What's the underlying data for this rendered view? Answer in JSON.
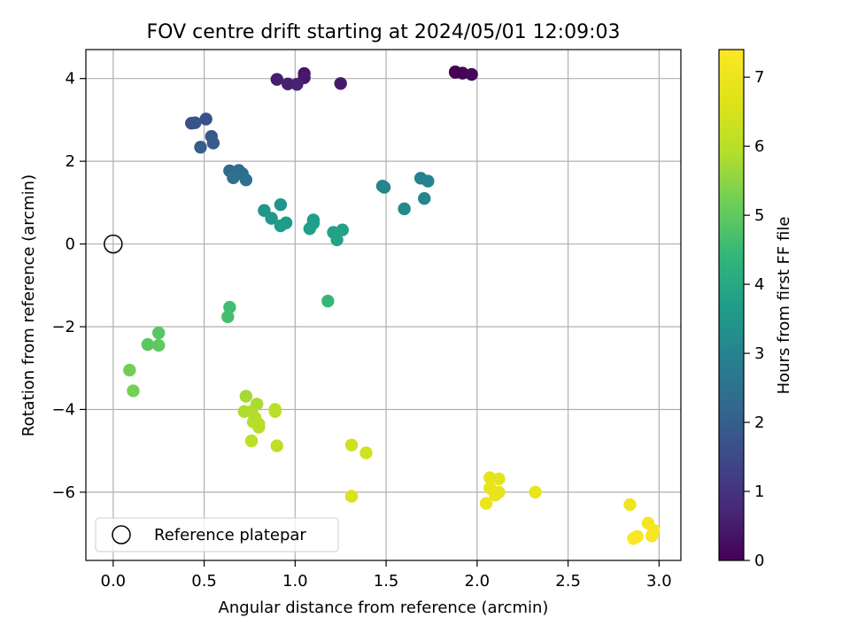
{
  "chart_data": {
    "type": "scatter",
    "title": "FOV centre drift starting at 2024/05/01 12:09:03",
    "xlabel": "Angular distance from reference (arcmin)",
    "ylabel": "Rotation from reference (arcmin)",
    "xlim": [
      -0.15,
      3.12
    ],
    "ylim": [
      -7.65,
      4.7
    ],
    "x_ticks": [
      0.0,
      0.5,
      1.0,
      1.5,
      2.0,
      2.5,
      3.0
    ],
    "x_tick_labels": [
      "0.0",
      "0.5",
      "1.0",
      "1.5",
      "2.0",
      "2.5",
      "3.0"
    ],
    "y_ticks": [
      4,
      2,
      0,
      -2,
      -4,
      -6
    ],
    "y_tick_labels": [
      "4",
      "2",
      "0",
      "−2",
      "−4",
      "−6"
    ],
    "grid": true,
    "legend": {
      "position": "lower-left",
      "entries": [
        "Reference platepar"
      ]
    },
    "colorbar": {
      "label": "Hours from first FF file",
      "colormap": "viridis",
      "range": [
        0,
        7.4
      ],
      "ticks": [
        0,
        1,
        2,
        3,
        4,
        5,
        6,
        7
      ],
      "tick_labels": [
        "0",
        "1",
        "2",
        "3",
        "4",
        "5",
        "6",
        "7"
      ]
    },
    "reference_point": {
      "name": "Reference platepar",
      "x": 0.0,
      "y": 0.0
    },
    "series": [
      {
        "points": [
          {
            "x": 1.88,
            "y": 4.15,
            "c": 0.05
          },
          {
            "x": 1.92,
            "y": 4.13,
            "c": 0.1
          },
          {
            "x": 1.97,
            "y": 4.1,
            "c": 0.15
          },
          {
            "x": 1.05,
            "y": 4.12,
            "c": 0.4
          },
          {
            "x": 1.05,
            "y": 4.02,
            "c": 0.45
          },
          {
            "x": 1.25,
            "y": 3.88,
            "c": 0.5
          },
          {
            "x": 0.9,
            "y": 3.98,
            "c": 0.55
          },
          {
            "x": 0.96,
            "y": 3.87,
            "c": 0.6
          },
          {
            "x": 1.01,
            "y": 3.86,
            "c": 0.65
          },
          {
            "x": 0.51,
            "y": 3.02,
            "c": 1.65
          },
          {
            "x": 0.43,
            "y": 2.92,
            "c": 1.7
          },
          {
            "x": 0.45,
            "y": 2.93,
            "c": 1.75
          },
          {
            "x": 0.54,
            "y": 2.6,
            "c": 1.85
          },
          {
            "x": 0.55,
            "y": 2.44,
            "c": 1.9
          },
          {
            "x": 0.48,
            "y": 2.34,
            "c": 1.95
          },
          {
            "x": 0.64,
            "y": 1.77,
            "c": 2.3
          },
          {
            "x": 0.69,
            "y": 1.78,
            "c": 2.35
          },
          {
            "x": 0.71,
            "y": 1.7,
            "c": 2.4
          },
          {
            "x": 0.66,
            "y": 1.6,
            "c": 2.45
          },
          {
            "x": 0.73,
            "y": 1.55,
            "c": 2.5
          },
          {
            "x": 1.88,
            "y": 4.16,
            "c": 0.02
          },
          {
            "x": 1.48,
            "y": 1.4,
            "c": 3.0
          },
          {
            "x": 1.49,
            "y": 1.37,
            "c": 3.05
          },
          {
            "x": 1.69,
            "y": 1.59,
            "c": 2.9
          },
          {
            "x": 1.73,
            "y": 1.52,
            "c": 2.95
          },
          {
            "x": 1.71,
            "y": 1.1,
            "c": 3.1
          },
          {
            "x": 1.6,
            "y": 0.85,
            "c": 3.15
          },
          {
            "x": 0.92,
            "y": 0.95,
            "c": 3.45
          },
          {
            "x": 0.83,
            "y": 0.81,
            "c": 3.5
          },
          {
            "x": 0.87,
            "y": 0.62,
            "c": 3.55
          },
          {
            "x": 0.95,
            "y": 0.51,
            "c": 3.6
          },
          {
            "x": 0.92,
            "y": 0.44,
            "c": 3.65
          },
          {
            "x": 1.1,
            "y": 0.58,
            "c": 3.7
          },
          {
            "x": 1.1,
            "y": 0.5,
            "c": 3.72
          },
          {
            "x": 1.08,
            "y": 0.37,
            "c": 3.75
          },
          {
            "x": 1.21,
            "y": 0.28,
            "c": 3.8
          },
          {
            "x": 1.26,
            "y": 0.34,
            "c": 3.82
          },
          {
            "x": 1.23,
            "y": 0.1,
            "c": 3.85
          },
          {
            "x": 1.18,
            "y": -1.38,
            "c": 4.45
          },
          {
            "x": 0.64,
            "y": -1.53,
            "c": 4.6
          },
          {
            "x": 0.63,
            "y": -1.76,
            "c": 4.65
          },
          {
            "x": 0.25,
            "y": -2.15,
            "c": 4.9
          },
          {
            "x": 0.19,
            "y": -2.43,
            "c": 4.95
          },
          {
            "x": 0.25,
            "y": -2.45,
            "c": 5.0
          },
          {
            "x": 0.09,
            "y": -3.05,
            "c": 5.2
          },
          {
            "x": 0.11,
            "y": -3.55,
            "c": 5.25
          },
          {
            "x": 0.73,
            "y": -3.68,
            "c": 5.75
          },
          {
            "x": 0.79,
            "y": -3.87,
            "c": 5.8
          },
          {
            "x": 0.72,
            "y": -4.05,
            "c": 5.85
          },
          {
            "x": 0.76,
            "y": -4.05,
            "c": 5.88
          },
          {
            "x": 0.78,
            "y": -4.2,
            "c": 5.9
          },
          {
            "x": 0.77,
            "y": -4.3,
            "c": 5.92
          },
          {
            "x": 0.8,
            "y": -4.35,
            "c": 5.95
          },
          {
            "x": 0.8,
            "y": -4.43,
            "c": 5.97
          },
          {
            "x": 0.89,
            "y": -4.0,
            "c": 6.0
          },
          {
            "x": 0.89,
            "y": -4.05,
            "c": 6.02
          },
          {
            "x": 0.76,
            "y": -4.76,
            "c": 6.05
          },
          {
            "x": 0.9,
            "y": -4.88,
            "c": 6.1
          },
          {
            "x": 1.31,
            "y": -4.86,
            "c": 6.35
          },
          {
            "x": 1.39,
            "y": -5.05,
            "c": 6.4
          },
          {
            "x": 1.31,
            "y": -6.1,
            "c": 6.55
          },
          {
            "x": 2.07,
            "y": -5.65,
            "c": 6.8
          },
          {
            "x": 2.12,
            "y": -5.68,
            "c": 6.82
          },
          {
            "x": 2.07,
            "y": -5.9,
            "c": 6.85
          },
          {
            "x": 2.12,
            "y": -6.0,
            "c": 6.87
          },
          {
            "x": 2.1,
            "y": -6.07,
            "c": 6.9
          },
          {
            "x": 2.32,
            "y": -6.0,
            "c": 6.92
          },
          {
            "x": 2.05,
            "y": -6.27,
            "c": 6.95
          },
          {
            "x": 2.84,
            "y": -6.3,
            "c": 7.05
          },
          {
            "x": 2.94,
            "y": -6.75,
            "c": 7.15
          },
          {
            "x": 2.97,
            "y": -6.92,
            "c": 7.2
          },
          {
            "x": 2.96,
            "y": -7.06,
            "c": 7.25
          },
          {
            "x": 2.88,
            "y": -7.07,
            "c": 7.28
          },
          {
            "x": 2.86,
            "y": -7.12,
            "c": 7.32
          }
        ]
      }
    ]
  }
}
